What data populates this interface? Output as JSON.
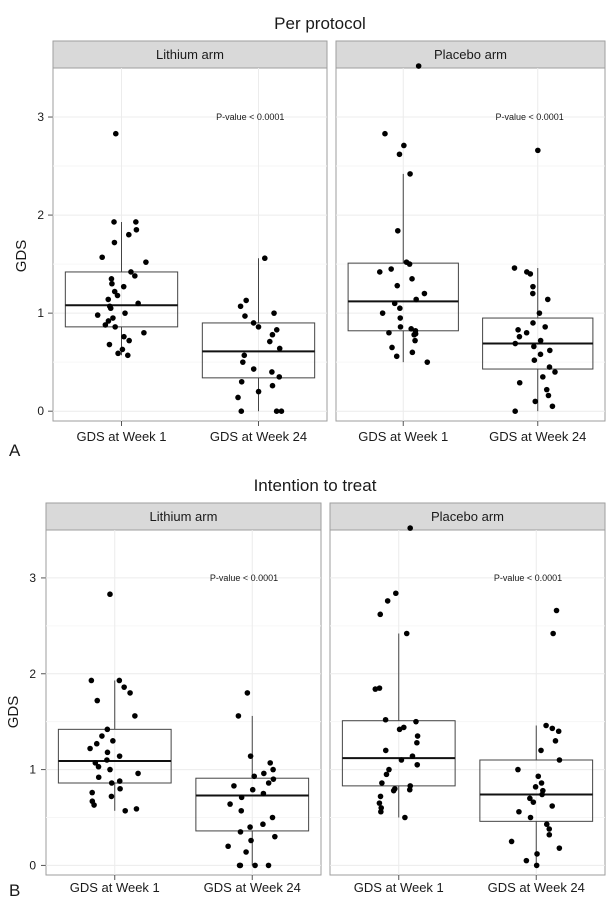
{
  "figures": [
    {
      "title": "Per protocol",
      "panel_letter": "A"
    },
    {
      "title": "Intention to treat",
      "panel_letter": "B"
    }
  ],
  "colors": {
    "strip": "#d9d9d9",
    "grid": "#ececec",
    "box_line": "#444444",
    "point": "#000000",
    "frame": "#9e9e9e"
  },
  "chart_data": [
    {
      "type": "box",
      "title": "Per protocol",
      "ylabel": "GDS",
      "ylim": [
        -0.1,
        3.5
      ],
      "yticks": [
        0,
        1,
        2,
        3
      ],
      "categories": [
        "GDS at Week 1",
        "GDS at Week 24"
      ],
      "panels": [
        {
          "name": "Lithium arm",
          "annotation": "P-value < 0.0001",
          "groups": [
            {
              "category": "GDS at Week 1",
              "min": 0.57,
              "q1": 0.86,
              "median": 1.08,
              "q3": 1.42,
              "max": 1.93,
              "points": [
                2.83,
                1.93,
                1.93,
                1.85,
                1.8,
                1.72,
                1.57,
                1.52,
                1.42,
                1.38,
                1.35,
                1.3,
                1.27,
                1.22,
                1.18,
                1.14,
                1.1,
                1.07,
                1.05,
                1.0,
                0.98,
                0.95,
                0.92,
                0.88,
                0.86,
                0.8,
                0.76,
                0.72,
                0.68,
                0.63,
                0.59,
                0.57
              ]
            },
            {
              "category": "GDS at Week 24",
              "min": 0.0,
              "q1": 0.34,
              "median": 0.61,
              "q3": 0.9,
              "max": 1.56,
              "points": [
                1.56,
                1.13,
                1.07,
                1.0,
                0.97,
                0.9,
                0.86,
                0.83,
                0.78,
                0.71,
                0.64,
                0.57,
                0.5,
                0.43,
                0.4,
                0.35,
                0.3,
                0.26,
                0.2,
                0.14,
                0.0,
                0.0,
                0.0
              ]
            }
          ]
        },
        {
          "name": "Placebo arm",
          "annotation": "P-value < 0.0001",
          "groups": [
            {
              "category": "GDS at Week 1",
              "min": 0.5,
              "q1": 0.82,
              "median": 1.12,
              "q3": 1.51,
              "max": 2.42,
              "points": [
                3.52,
                2.83,
                2.71,
                2.62,
                2.42,
                1.84,
                1.52,
                1.5,
                1.45,
                1.42,
                1.35,
                1.28,
                1.2,
                1.14,
                1.1,
                1.05,
                1.0,
                0.95,
                0.86,
                0.84,
                0.82,
                0.8,
                0.79,
                0.78,
                0.72,
                0.65,
                0.6,
                0.56,
                0.5
              ]
            },
            {
              "category": "GDS at Week 24",
              "min": 0.0,
              "q1": 0.43,
              "median": 0.69,
              "q3": 0.95,
              "max": 1.46,
              "points": [
                2.66,
                1.46,
                1.42,
                1.4,
                1.27,
                1.2,
                1.14,
                1.0,
                0.9,
                0.86,
                0.83,
                0.8,
                0.76,
                0.72,
                0.69,
                0.66,
                0.62,
                0.58,
                0.52,
                0.45,
                0.4,
                0.35,
                0.29,
                0.22,
                0.16,
                0.1,
                0.05,
                0.0
              ]
            }
          ]
        }
      ]
    },
    {
      "type": "box",
      "title": "Intention to treat",
      "ylabel": "GDS",
      "ylim": [
        -0.1,
        3.5
      ],
      "yticks": [
        0,
        1,
        2,
        3
      ],
      "categories": [
        "GDS at Week 1",
        "GDS at Week 24"
      ],
      "panels": [
        {
          "name": "Lithium arm",
          "annotation": "P-value < 0.0001",
          "groups": [
            {
              "category": "GDS at Week 1",
              "min": 0.57,
              "q1": 0.86,
              "median": 1.09,
              "q3": 1.42,
              "max": 1.93,
              "points": [
                2.83,
                1.93,
                1.93,
                1.86,
                1.8,
                1.72,
                1.56,
                1.42,
                1.35,
                1.3,
                1.27,
                1.22,
                1.18,
                1.14,
                1.1,
                1.07,
                1.03,
                1.0,
                0.96,
                0.92,
                0.88,
                0.86,
                0.8,
                0.76,
                0.72,
                0.67,
                0.63,
                0.59,
                0.57
              ]
            },
            {
              "category": "GDS at Week 24",
              "min": 0.0,
              "q1": 0.36,
              "median": 0.73,
              "q3": 0.91,
              "max": 1.56,
              "points": [
                1.8,
                1.56,
                1.14,
                1.07,
                1.0,
                0.96,
                0.93,
                0.9,
                0.86,
                0.83,
                0.79,
                0.75,
                0.71,
                0.64,
                0.57,
                0.5,
                0.43,
                0.4,
                0.35,
                0.3,
                0.26,
                0.2,
                0.14,
                0.0,
                0.0,
                0.0,
                0.0
              ]
            }
          ]
        },
        {
          "name": "Placebo arm",
          "annotation": "P-value < 0.0001",
          "groups": [
            {
              "category": "GDS at Week 1",
              "min": 0.5,
              "q1": 0.83,
              "median": 1.12,
              "q3": 1.51,
              "max": 2.42,
              "points": [
                3.52,
                2.84,
                2.76,
                2.62,
                2.42,
                1.85,
                1.84,
                1.52,
                1.5,
                1.44,
                1.42,
                1.35,
                1.28,
                1.2,
                1.14,
                1.1,
                1.05,
                1.0,
                0.95,
                0.86,
                0.83,
                0.8,
                0.79,
                0.78,
                0.72,
                0.65,
                0.6,
                0.56,
                0.5
              ]
            },
            {
              "category": "GDS at Week 24",
              "min": 0.0,
              "q1": 0.46,
              "median": 0.74,
              "q3": 1.1,
              "max": 1.46,
              "points": [
                2.66,
                2.42,
                1.46,
                1.43,
                1.4,
                1.3,
                1.2,
                1.1,
                1.0,
                0.93,
                0.86,
                0.82,
                0.78,
                0.74,
                0.7,
                0.66,
                0.62,
                0.56,
                0.5,
                0.43,
                0.38,
                0.32,
                0.25,
                0.18,
                0.12,
                0.05,
                0.0
              ]
            }
          ]
        }
      ]
    }
  ]
}
